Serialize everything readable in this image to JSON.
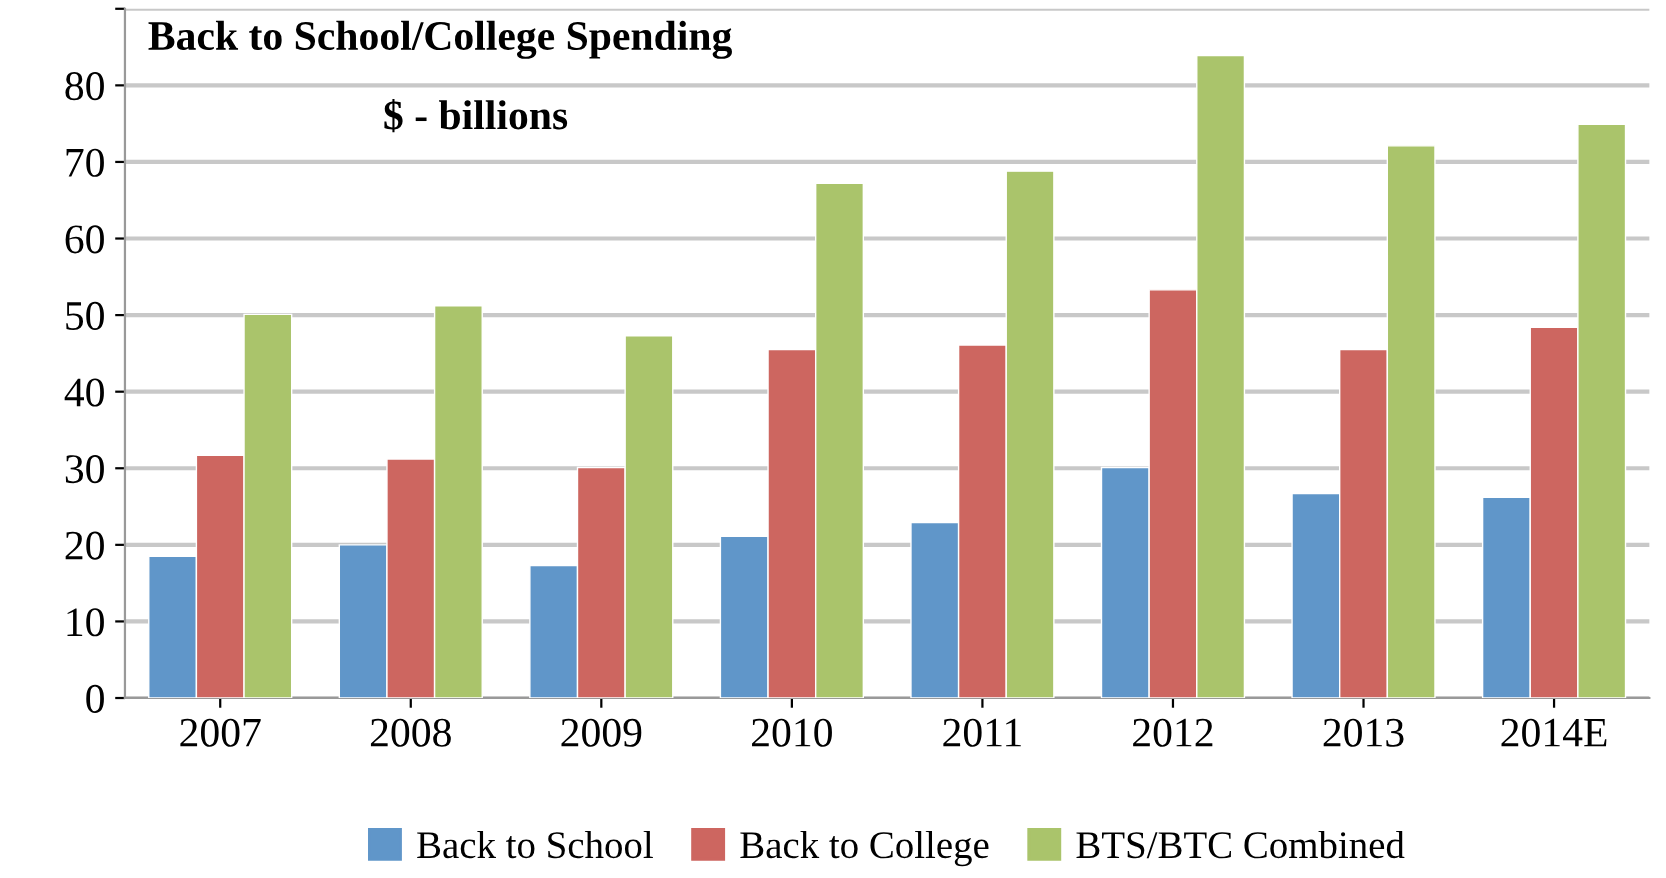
{
  "chart_data": {
    "type": "bar",
    "title": "Back to School/College Spending",
    "subtitle": "$ - billions",
    "categories": [
      "2007",
      "2008",
      "2009",
      "2010",
      "2011",
      "2012",
      "2013",
      "2014E"
    ],
    "series": [
      {
        "name": "Back to School",
        "color": "#6096c9",
        "values": [
          18.5,
          20,
          17.3,
          21.1,
          22.9,
          30.1,
          26.7,
          26.2
        ]
      },
      {
        "name": "Back to College",
        "color": "#cd6660",
        "values": [
          31.7,
          31.2,
          30.1,
          45.5,
          46.1,
          53.3,
          45.5,
          48.4
        ]
      },
      {
        "name": "BTS/BTC Combined",
        "color": "#aac46b",
        "values": [
          50.1,
          51.2,
          47.3,
          67.2,
          68.8,
          83.9,
          72.1,
          74.9
        ]
      }
    ],
    "ylim": [
      0,
      90
    ],
    "yticks": [
      0,
      10,
      20,
      30,
      40,
      50,
      60,
      70,
      80,
      {
        "value": 90,
        "label": null
      }
    ],
    "grid": "y",
    "legend": "bottom"
  }
}
